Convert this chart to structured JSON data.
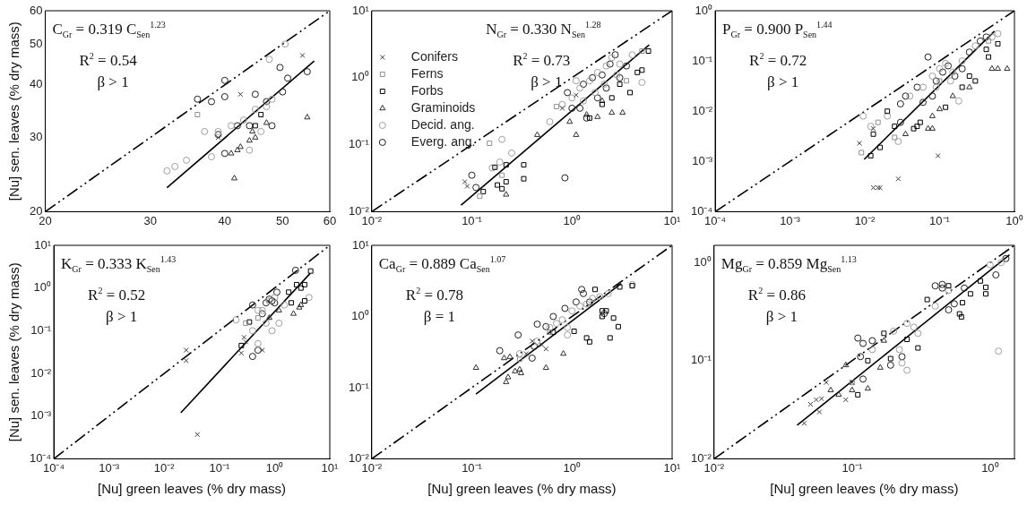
{
  "chart_data": [
    {
      "type": "scatter",
      "log": "xy",
      "ylabel": "[Nu] sen. leaves (% dry mass)",
      "xlim": [
        20,
        60
      ],
      "ylim": [
        20,
        60
      ],
      "xticks": [
        20,
        30,
        40,
        50,
        60
      ],
      "yticks": [
        20,
        30,
        40,
        50,
        60
      ],
      "annotations": [
        "C$_{Gr}$ = 0.319 C$_{Sen}$$^{1.23}$",
        "R$^{2}$ = 0.54",
        "β > 1"
      ],
      "series": [
        {
          "type": "scatter",
          "marker": "cross",
          "color": "#404040",
          "x": [
            54,
            42.5,
            39
          ],
          "values": [
            47,
            38,
            30
          ]
        },
        {
          "type": "scatter",
          "marker": "square",
          "color": "#909090",
          "x": [
            36
          ],
          "values": [
            34
          ]
        },
        {
          "type": "scatter",
          "marker": "square",
          "color": "#000000",
          "x": [
            46,
            45
          ],
          "values": [
            34,
            32
          ]
        },
        {
          "type": "scatter",
          "marker": "triangle",
          "color": "#303030",
          "x": [
            41.5,
            41,
            42,
            42.5,
            44,
            45,
            44.5,
            55,
            47
          ],
          "values": [
            24,
            27.5,
            28,
            28.5,
            29.5,
            30,
            31,
            33.5,
            32.5
          ]
        },
        {
          "type": "scatter",
          "marker": "circle",
          "color": "#a0a0a0",
          "x": [
            32,
            33,
            34.5,
            37,
            38,
            39,
            41,
            43,
            45,
            47,
            48,
            50.5,
            47.5,
            44,
            46
          ],
          "values": [
            25,
            25.6,
            26.5,
            31,
            27,
            31,
            32,
            33,
            35,
            35.5,
            37,
            50,
            46,
            28,
            31
          ]
        },
        {
          "type": "scatter",
          "marker": "circle",
          "color": "#202020",
          "x": [
            40,
            36,
            38,
            40,
            45,
            49.5,
            50,
            51,
            55,
            40,
            48,
            44,
            42,
            39,
            47
          ],
          "values": [
            41,
            37,
            36.5,
            37.5,
            38,
            44,
            38.5,
            41.5,
            43,
            27.5,
            32,
            32,
            32,
            30.5,
            36.5
          ]
        },
        {
          "type": "line",
          "line_style": "solid",
          "color": "#000000",
          "x": [
            32,
            56.5
          ],
          "values": [
            22.8,
            45.6
          ]
        },
        {
          "type": "line",
          "line_style": "dashed",
          "color": "#000000",
          "x": [
            20,
            60
          ],
          "values": [
            20,
            60
          ]
        }
      ]
    },
    {
      "type": "scatter",
      "log": "xy",
      "legend": "top left",
      "xlim": [
        0.01,
        10
      ],
      "ylim": [
        0.01,
        10
      ],
      "xticks": [
        {
          "value": 0.01,
          "label": "10⁻²"
        },
        {
          "value": 0.1,
          "label": "10⁻¹"
        },
        {
          "value": 1,
          "label": "10⁰"
        },
        {
          "value": 10,
          "label": "10¹"
        }
      ],
      "yticks": [
        {
          "value": 0.01,
          "label": "10⁻²"
        },
        {
          "value": 0.1,
          "label": "10⁻¹"
        },
        {
          "value": 1,
          "label": "10⁰"
        },
        {
          "value": 10,
          "label": "10¹"
        }
      ],
      "annotations": [
        "N$_{Gr}$ = 0.330 N$_{Sen}$$^{1.28}$",
        "R$^{2}$ = 0.73",
        "β > 1"
      ],
      "series": [
        {
          "type": "scatter",
          "name": "Conifers",
          "marker": "cross",
          "color": "#404040",
          "x": [
            0.085,
            0.09,
            1.1,
            0.8
          ],
          "values": [
            0.028,
            0.024,
            0.55,
            0.35
          ]
        },
        {
          "type": "scatter",
          "name": "Ferns",
          "marker": "square",
          "color": "#909090",
          "x": [
            0.15,
            0.12,
            0.2,
            0.7,
            3.5,
            5
          ],
          "values": [
            0.105,
            0.017,
            0.035,
            0.37,
            0.9,
            2.5
          ]
        },
        {
          "type": "scatter",
          "name": "Forbs",
          "marker": "square",
          "color": "#000000",
          "x": [
            0.17,
            0.13,
            0.18,
            0.2,
            0.22,
            0.22,
            0.33,
            0.33,
            1.5,
            2.5,
            3.8,
            5,
            5.8,
            4.5,
            3,
            2
          ],
          "values": [
            0.046,
            0.02,
            0.025,
            0.022,
            0.028,
            0.05,
            0.05,
            0.031,
            0.25,
            0.5,
            0.6,
            1.3,
            2.5,
            1.2,
            0.8,
            0.4
          ]
        },
        {
          "type": "scatter",
          "name": "Graminoids",
          "marker": "triangle",
          "color": "#303030",
          "x": [
            0.22,
            0.45,
            1.1,
            0.95,
            1.8,
            2.5,
            3.2,
            1.4,
            2
          ],
          "values": [
            0.018,
            0.14,
            0.14,
            0.22,
            0.26,
            0.3,
            0.3,
            0.28,
            0.45
          ]
        },
        {
          "type": "scatter",
          "name": "Decid. ang.",
          "marker": "circle",
          "color": "#a0a0a0",
          "x": [
            0.2,
            0.25,
            0.19,
            0.16,
            0.6,
            0.8,
            1,
            1.2,
            1.5,
            1.8,
            2.2,
            2.5,
            3,
            1.3,
            1.7,
            2.1,
            2.8,
            5,
            4,
            1.1
          ],
          "values": [
            0.12,
            0.075,
            0.055,
            0.045,
            0.22,
            0.4,
            0.5,
            0.7,
            0.9,
            1.2,
            1.5,
            2,
            1.6,
            0.45,
            0.6,
            0.8,
            1.1,
            0.85,
            2.2,
            0.9
          ]
        },
        {
          "type": "scatter",
          "name": "Everg. ang.",
          "marker": "circle",
          "color": "#202020",
          "x": [
            0.1,
            0.11,
            0.85,
            0.9,
            1,
            1.3,
            1.6,
            2,
            2.4,
            2.7,
            1.2,
            1.4,
            2.2,
            3,
            3.5,
            1.8
          ],
          "values": [
            0.035,
            0.023,
            0.032,
            0.6,
            0.35,
            0.8,
            1,
            1.1,
            1.6,
            2.2,
            0.35,
            0.25,
            0.7,
            1,
            1.5,
            0.5
          ]
        },
        {
          "type": "line",
          "line_style": "solid",
          "color": "#000000",
          "x": [
            0.078,
            5.9
          ],
          "values": [
            0.0125,
            3.1
          ]
        },
        {
          "type": "line",
          "line_style": "dashed",
          "color": "#000000",
          "x": [
            0.01,
            10
          ],
          "values": [
            0.01,
            10
          ]
        }
      ]
    },
    {
      "type": "scatter",
      "log": "xy",
      "xlim": [
        0.0001,
        1
      ],
      "ylim": [
        0.0001,
        1
      ],
      "xticks": [
        {
          "value": 0.0001,
          "label": "10⁻⁴"
        },
        {
          "value": 0.001,
          "label": "10⁻³"
        },
        {
          "value": 0.01,
          "label": "10⁻²"
        },
        {
          "value": 0.1,
          "label": "10⁻¹"
        },
        {
          "value": 1,
          "label": "10⁰"
        }
      ],
      "yticks": [
        {
          "value": 0.0001,
          "label": "10⁻⁴"
        },
        {
          "value": 0.001,
          "label": "10⁻³"
        },
        {
          "value": 0.01,
          "label": "10⁻²"
        },
        {
          "value": 0.1,
          "label": "10⁻¹"
        },
        {
          "value": 1,
          "label": "10⁰"
        }
      ],
      "annotations": [
        "P$_{Gr}$ = 0.900 P$_{Sen}$$^{1.44}$",
        "R$^{2}$ = 0.72",
        "β > 1"
      ],
      "series": [
        {
          "type": "scatter",
          "marker": "cross",
          "color": "#404040",
          "x": [
            0.0085,
            0.013,
            0.015,
            0.016,
            0.028,
            0.095,
            0.013
          ],
          "values": [
            0.0023,
            0.0003,
            0.0003,
            0.0003,
            0.00045,
            0.0013,
            0.0045
          ]
        },
        {
          "type": "scatter",
          "marker": "square",
          "color": "#909090",
          "x": [
            0.009,
            0.015,
            0.025,
            0.45,
            0.1
          ],
          "values": [
            0.0015,
            0.006,
            0.003,
            0.25,
            0.04
          ]
        },
        {
          "type": "scatter",
          "marker": "square",
          "color": "#000000",
          "x": [
            0.012,
            0.013,
            0.016,
            0.02,
            0.025,
            0.045,
            0.05,
            0.055,
            0.12,
            0.2,
            0.25,
            0.3,
            0.45,
            0.6,
            0.42
          ],
          "values": [
            0.0013,
            0.0035,
            0.0019,
            0.01,
            0.005,
            0.0045,
            0.005,
            0.006,
            0.012,
            0.03,
            0.05,
            0.04,
            0.12,
            0.22,
            0.17
          ]
        },
        {
          "type": "scatter",
          "marker": "triangle",
          "color": "#303030",
          "x": [
            0.035,
            0.07,
            0.08,
            0.08,
            0.1,
            0.15,
            0.25,
            0.5,
            0.6,
            0.8
          ],
          "values": [
            0.0035,
            0.0045,
            0.0045,
            0.008,
            0.011,
            0.02,
            0.03,
            0.07,
            0.07,
            0.07
          ]
        },
        {
          "type": "scatter",
          "marker": "circle",
          "color": "#a0a0a0",
          "x": [
            0.0095,
            0.012,
            0.02,
            0.028,
            0.04,
            0.06,
            0.08,
            0.1,
            0.12,
            0.15,
            0.18,
            0.2,
            0.3,
            0.5,
            0.6,
            0.09,
            0.14
          ],
          "values": [
            0.008,
            0.005,
            0.008,
            0.0025,
            0.02,
            0.03,
            0.05,
            0.07,
            0.09,
            0.06,
            0.016,
            0.1,
            0.2,
            0.3,
            0.35,
            0.03,
            0.04
          ]
        },
        {
          "type": "scatter",
          "marker": "circle",
          "color": "#202020",
          "x": [
            0.03,
            0.035,
            0.03,
            0.05,
            0.07,
            0.09,
            0.11,
            0.13,
            0.16,
            0.2,
            0.25,
            0.35,
            0.42,
            0.08,
            0.06
          ],
          "values": [
            0.006,
            0.02,
            0.014,
            0.03,
            0.12,
            0.04,
            0.06,
            0.08,
            0.05,
            0.07,
            0.15,
            0.25,
            0.3,
            0.02,
            0.015
          ]
        },
        {
          "type": "line",
          "line_style": "solid",
          "color": "#000000",
          "x": [
            0.0098,
            0.54
          ],
          "values": [
            0.0011,
            0.39
          ]
        },
        {
          "type": "line",
          "line_style": "dashed",
          "color": "#000000",
          "x": [
            0.0001,
            1
          ],
          "values": [
            0.0001,
            1
          ]
        }
      ]
    },
    {
      "type": "scatter",
      "log": "xy",
      "xlabel": "[Nu] green leaves (% dry mass)",
      "ylabel": "[Nu] sen. leaves (% dry mass)",
      "xlim": [
        0.0001,
        10
      ],
      "ylim": [
        0.0001,
        10
      ],
      "xticks": [
        {
          "value": 0.0001,
          "label": "10⁻⁴"
        },
        {
          "value": 0.001,
          "label": "10⁻³"
        },
        {
          "value": 0.01,
          "label": "10⁻²"
        },
        {
          "value": 0.1,
          "label": "10⁻¹"
        },
        {
          "value": 1,
          "label": "10⁰"
        },
        {
          "value": 10,
          "label": "10¹"
        }
      ],
      "yticks": [
        {
          "value": 0.0001,
          "label": "10⁻⁴"
        },
        {
          "value": 0.001,
          "label": "10⁻³"
        },
        {
          "value": 0.01,
          "label": "10⁻²"
        },
        {
          "value": 0.1,
          "label": "10⁻¹"
        },
        {
          "value": 1,
          "label": "10⁰"
        },
        {
          "value": 10,
          "label": "10¹"
        }
      ],
      "annotations": [
        "K$_{Gr}$ = 0.333 K$_{Sen}$$^{1.43}$",
        "R$^{2}$ = 0.52",
        "β > 1"
      ],
      "series": [
        {
          "type": "scatter",
          "marker": "cross",
          "color": "#404040",
          "x": [
            0.025,
            0.025,
            0.04,
            0.25,
            0.3,
            0.6,
            0.28
          ],
          "values": [
            0.035,
            0.02,
            0.00037,
            0.03,
            0.055,
            0.035,
            0.07
          ]
        },
        {
          "type": "scatter",
          "marker": "square",
          "color": "#909090",
          "x": [
            0.3,
            0.5
          ],
          "values": [
            0.15,
            0.2
          ]
        },
        {
          "type": "scatter",
          "marker": "square",
          "color": "#000000",
          "x": [
            0.25,
            0.35,
            2,
            2.5,
            3,
            3.5,
            3.5,
            4.5,
            1.8
          ],
          "values": [
            0.045,
            0.16,
            0.45,
            1.2,
            1,
            1.2,
            0.5,
            2.5,
            0.8
          ]
        },
        {
          "type": "scatter",
          "marker": "triangle",
          "color": "#303030",
          "x": [
            2.2,
            2.8,
            3,
            1.2,
            0.8
          ],
          "values": [
            0.25,
            0.35,
            0.4,
            0.3,
            0.2
          ]
        },
        {
          "type": "scatter",
          "marker": "circle",
          "color": "#a0a0a0",
          "x": [
            0.2,
            0.4,
            0.5,
            0.6,
            0.8,
            1,
            1.2,
            0.9,
            0.7,
            1.5,
            4.2,
            0.5
          ],
          "values": [
            0.18,
            0.1,
            0.05,
            0.3,
            0.5,
            0.6,
            0.15,
            0.1,
            0.15,
            0.4,
            0.6,
            0.3
          ]
        },
        {
          "type": "scatter",
          "marker": "circle",
          "color": "#202020",
          "x": [
            0.4,
            0.5,
            2.4,
            0.8,
            0.9,
            1,
            0.7,
            0.6,
            1.1,
            0.4
          ],
          "values": [
            0.025,
            0.035,
            2.6,
            0.55,
            0.5,
            0.45,
            0.45,
            0.25,
            0.8,
            0.4
          ]
        },
        {
          "type": "line",
          "line_style": "solid",
          "color": "#000000",
          "x": [
            0.02,
            4.4
          ],
          "values": [
            0.0012,
            2.2
          ]
        },
        {
          "type": "line",
          "line_style": "dashed",
          "color": "#000000",
          "x": [
            0.0001,
            10
          ],
          "values": [
            0.0001,
            10
          ]
        }
      ]
    },
    {
      "type": "scatter",
      "log": "xy",
      "xlabel": "[Nu] green leaves (% dry mass)",
      "xlim": [
        0.01,
        10
      ],
      "ylim": [
        0.01,
        10
      ],
      "xticks": [
        {
          "value": 0.01,
          "label": "10⁻²"
        },
        {
          "value": 0.1,
          "label": "10⁻¹"
        },
        {
          "value": 1,
          "label": "10⁰"
        },
        {
          "value": 10,
          "label": "10¹"
        }
      ],
      "yticks": [
        {
          "value": 0.01,
          "label": "10⁻²"
        },
        {
          "value": 0.1,
          "label": "10⁻¹"
        },
        {
          "value": 1,
          "label": "10⁰"
        },
        {
          "value": 10,
          "label": "10¹"
        }
      ],
      "annotations": [
        "Ca$_{Gr}$ = 0.889 Ca$_{Sen}$$^{1.07}$",
        "R$^{2}$ = 0.78",
        "β = 1"
      ],
      "series": [
        {
          "type": "scatter",
          "marker": "cross",
          "color": "#404040",
          "x": [
            0.4,
            0.5,
            0.35,
            0.55
          ],
          "values": [
            0.45,
            0.4,
            0.3,
            0.35
          ]
        },
        {
          "type": "scatter",
          "marker": "square",
          "color": "#909090",
          "x": [
            0.6,
            0.3
          ],
          "values": [
            0.6,
            0.25
          ]
        },
        {
          "type": "scatter",
          "marker": "square",
          "color": "#000000",
          "x": [
            0.65,
            1.05,
            1.4,
            1.5,
            1.7,
            2,
            2,
            2.2,
            2.4,
            2.6,
            2.9,
            3,
            4
          ],
          "values": [
            0.6,
            0.62,
            0.5,
            0.44,
            2.4,
            1.2,
            1,
            1.2,
            0.5,
            0.95,
            0.72,
            2.6,
            2.7
          ]
        },
        {
          "type": "scatter",
          "marker": "triangle",
          "color": "#303030",
          "x": [
            0.11,
            0.21,
            0.22,
            0.23,
            0.24,
            0.27,
            0.3,
            0.31,
            0.55,
            0.82
          ],
          "values": [
            0.19,
            0.26,
            0.12,
            0.14,
            0.27,
            0.17,
            0.18,
            0.16,
            0.19,
            0.3
          ]
        },
        {
          "type": "scatter",
          "marker": "circle",
          "color": "#a0a0a0",
          "x": [
            0.3,
            0.45,
            0.6,
            0.7,
            0.8,
            0.9,
            1,
            1.2,
            1.4,
            1.6,
            1.9,
            2.3,
            0.9,
            4
          ],
          "values": [
            0.3,
            0.45,
            0.7,
            0.8,
            0.9,
            0.7,
            1.2,
            1.4,
            1.5,
            1.8,
            1.9,
            2.1,
            0.55,
            2.8
          ]
        },
        {
          "type": "scatter",
          "marker": "circle",
          "color": "#202020",
          "x": [
            0.19,
            0.29,
            0.4,
            0.45,
            0.55,
            0.65,
            0.85,
            1.25,
            1.3,
            1.1,
            1.5,
            0.42,
            2.1
          ],
          "values": [
            0.33,
            0.55,
            0.26,
            0.78,
            0.72,
            1,
            1.3,
            2.4,
            2.1,
            1.6,
            1.6,
            0.38,
            1.1
          ]
        },
        {
          "type": "line",
          "line_style": "solid",
          "color": "#000000",
          "x": [
            0.11,
            3.1
          ],
          "values": [
            0.081,
            2.9
          ]
        },
        {
          "type": "line",
          "line_style": "dashed",
          "color": "#000000",
          "x": [
            0.01,
            10
          ],
          "values": [
            0.01,
            10
          ]
        }
      ]
    },
    {
      "type": "scatter",
      "log": "xy",
      "xlabel": "[Nu] green leaves (% dry mass)",
      "xlim": [
        0.01,
        1.5
      ],
      "ylim": [
        0.01,
        1.5
      ],
      "xticks": [
        {
          "value": 0.01,
          "label": "10⁻²"
        },
        {
          "value": 0.1,
          "label": "10⁻¹"
        },
        {
          "value": 1,
          "label": "10⁰"
        }
      ],
      "yticks": [
        {
          "value": 0.01,
          "label": "10⁻²"
        },
        {
          "value": 0.1,
          "label": "10⁻¹"
        },
        {
          "value": 1,
          "label": "10⁰"
        }
      ],
      "annotations": [
        "Mg$_{Gr}$ = 0.859 Mg$_{Sen}$$^{1.13}$",
        "R$^{2}$ = 0.86",
        "β > 1"
      ],
      "series": [
        {
          "type": "scatter",
          "marker": "cross",
          "color": "#404040",
          "x": [
            0.045,
            0.05,
            0.058,
            0.06,
            0.065,
            0.09,
            0.1,
            0.055
          ],
          "values": [
            0.023,
            0.036,
            0.03,
            0.041,
            0.06,
            0.04,
            0.06,
            0.04
          ]
        },
        {
          "type": "scatter",
          "marker": "square",
          "color": "#909090",
          "x": [
            0.1
          ],
          "values": [
            0.06
          ]
        },
        {
          "type": "scatter",
          "marker": "square",
          "color": "#000000",
          "x": [
            0.11,
            0.13,
            0.17,
            0.19,
            0.25,
            0.3,
            0.35,
            0.5,
            0.6,
            0.62,
            0.63,
            0.72,
            0.85,
            0.93,
            0.93
          ],
          "values": [
            0.045,
            0.1,
            0.19,
            0.105,
            0.165,
            0.135,
            0.42,
            0.58,
            0.3,
            0.28,
            0.39,
            0.48,
            0.65,
            0.48,
            0.56
          ]
        },
        {
          "type": "scatter",
          "marker": "triangle",
          "color": "#303030",
          "x": [
            0.07,
            0.08,
            0.09,
            0.1,
            0.13,
            0.16,
            0.17
          ],
          "values": [
            0.05,
            0.045,
            0.09,
            0.05,
            0.052,
            0.085,
            0.16
          ]
        },
        {
          "type": "scatter",
          "marker": "circle",
          "color": "#a0a0a0",
          "x": [
            0.14,
            0.2,
            0.22,
            0.23,
            0.25,
            0.28,
            0.3,
            0.4,
            0.5,
            1.15,
            1.2,
            1,
            0.25
          ],
          "values": [
            0.13,
            0.2,
            0.13,
            0.095,
            0.08,
            0.22,
            0.19,
            0.36,
            0.52,
            0.125,
            1,
            0.95,
            0.24
          ]
        },
        {
          "type": "scatter",
          "marker": "circle",
          "color": "#202020",
          "x": [
            0.11,
            0.115,
            0.12,
            0.12,
            0.14,
            0.19,
            0.23,
            0.4,
            0.45,
            0.5,
            0.55,
            0.65,
            1.1,
            1.3,
            0.45
          ],
          "values": [
            0.17,
            0.11,
            0.065,
            0.15,
            0.16,
            0.09,
            0.11,
            0.58,
            0.55,
            0.33,
            0.38,
            0.55,
            0.75,
            1.1,
            0.6
          ]
        },
        {
          "type": "line",
          "line_style": "solid",
          "color": "#000000",
          "x": [
            0.04,
            1.38
          ],
          "values": [
            0.022,
            1.2
          ]
        },
        {
          "type": "line",
          "line_style": "dashed",
          "color": "#000000",
          "x": [
            0.01,
            1.5
          ],
          "values": [
            0.01,
            1.5
          ]
        }
      ]
    }
  ]
}
